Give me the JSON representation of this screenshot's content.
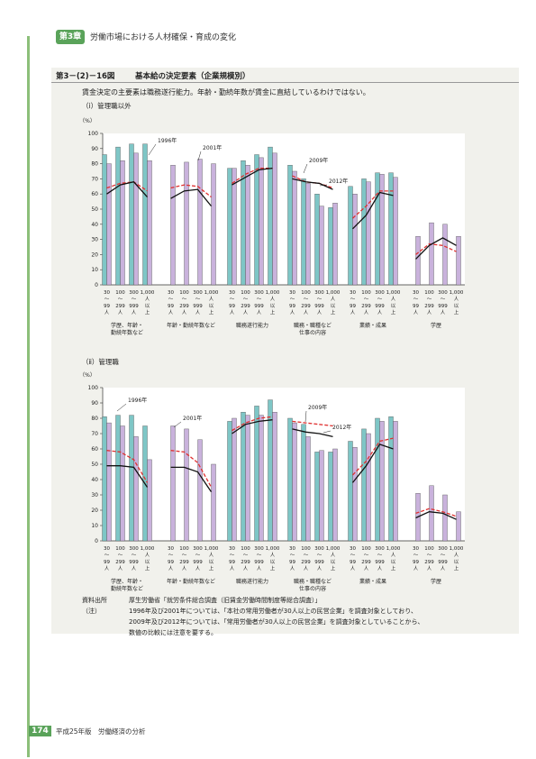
{
  "header": {
    "chapter_badge": "第3章",
    "chapter_title": "労働市場における人材確保・育成の変化"
  },
  "figure": {
    "id": "第3－(2)－16図",
    "title": "基本給の決定要素（企業規模別）",
    "lead": "賃金決定の主要素は職務遂行能力。年齢・勤続年数が賃金に直結しているわけではない。"
  },
  "chart_data": [
    {
      "type": "bar",
      "panel_label": "（ⅰ）管理職以外",
      "ylabel": "（%）",
      "ylim": [
        0,
        100
      ],
      "yticks": [
        0,
        10,
        20,
        30,
        40,
        50,
        60,
        70,
        80,
        90,
        100
      ],
      "size_labels": [
        [
          "30",
          "〜",
          "99",
          "人"
        ],
        [
          "100",
          "〜",
          "299",
          "人"
        ],
        [
          "300",
          "〜",
          "999",
          "人"
        ],
        [
          "1,000",
          "人",
          "以",
          "上"
        ]
      ],
      "groups": [
        "学歴、年齢・勤続年数など",
        "年齢・勤続年数など",
        "職務遂行能力",
        "職務・職種など仕事の内容",
        "業績・成果",
        "学歴"
      ],
      "series": [
        {
          "name": "1996年",
          "kind": "bar",
          "color": "#7ec6c6",
          "values": [
            [
              86,
              91,
              93,
              93
            ],
            [
              null,
              null,
              null,
              null
            ],
            [
              77,
              82,
              86,
              91
            ],
            [
              79,
              70,
              60,
              51
            ],
            [
              65,
              70,
              74,
              74
            ],
            [
              null,
              null,
              null,
              null
            ]
          ]
        },
        {
          "name": "2001年",
          "kind": "bar",
          "color": "#c9b2dc",
          "values": [
            [
              80,
              82,
              87,
              82
            ],
            [
              79,
              81,
              83,
              80
            ],
            [
              77,
              79,
              84,
              87
            ],
            [
              75,
              67,
              52,
              54
            ],
            [
              60,
              68,
              73,
              71
            ],
            [
              32,
              41,
              40,
              32
            ]
          ]
        },
        {
          "name": "2009年",
          "kind": "line",
          "color": "#e03030",
          "dash": true,
          "values": [
            [
              64,
              67,
              68,
              62
            ],
            [
              64,
              66,
              65,
              58
            ],
            [
              67,
              73,
              77,
              77
            ],
            [
              72,
              68,
              67,
              64
            ],
            [
              44,
              52,
              62,
              62
            ],
            [
              20,
              27,
              26,
              22
            ]
          ]
        },
        {
          "name": "2012年",
          "kind": "line",
          "color": "#111111",
          "dash": false,
          "values": [
            [
              60,
              66,
              68,
              58
            ],
            [
              57,
              62,
              63,
              52
            ],
            [
              66,
              71,
              76,
              77
            ],
            [
              70,
              68,
              67,
              63
            ],
            [
              37,
              46,
              61,
              59
            ],
            [
              17,
              26,
              31,
              26
            ]
          ]
        }
      ]
    },
    {
      "type": "bar",
      "panel_label": "（ⅱ）管理職",
      "ylabel": "（%）",
      "ylim": [
        0,
        100
      ],
      "yticks": [
        0,
        10,
        20,
        30,
        40,
        50,
        60,
        70,
        80,
        90,
        100
      ],
      "size_labels": [
        [
          "30",
          "〜",
          "99",
          "人"
        ],
        [
          "100",
          "〜",
          "299",
          "人"
        ],
        [
          "300",
          "〜",
          "999",
          "人"
        ],
        [
          "1,000",
          "人",
          "以",
          "上"
        ]
      ],
      "groups": [
        "学歴、年齢・勤続年数など",
        "年齢・勤続年数など",
        "職務遂行能力",
        "職務・職種など仕事の内容",
        "業績・成果",
        "学歴"
      ],
      "series": [
        {
          "name": "1996年",
          "kind": "bar",
          "color": "#7ec6c6",
          "values": [
            [
              81,
              82,
              82,
              75
            ],
            [
              null,
              null,
              null,
              null
            ],
            [
              78,
              84,
              88,
              92
            ],
            [
              80,
              76,
              58,
              58
            ],
            [
              65,
              73,
              80,
              81
            ],
            [
              null,
              null,
              null,
              null
            ]
          ]
        },
        {
          "name": "2001年",
          "kind": "bar",
          "color": "#c9b2dc",
          "values": [
            [
              77,
              75,
              68,
              53
            ],
            [
              75,
              73,
              66,
              50
            ],
            [
              80,
              82,
              82,
              84
            ],
            [
              77,
              68,
              59,
              60
            ],
            [
              61,
              70,
              78,
              78
            ],
            [
              31,
              36,
              30,
              19
            ]
          ]
        },
        {
          "name": "2009年",
          "kind": "line",
          "color": "#e03030",
          "dash": true,
          "values": [
            [
              59,
              58,
              53,
              38
            ],
            [
              59,
              58,
              51,
              35
            ],
            [
              72,
              77,
              80,
              81
            ],
            [
              78,
              77,
              76,
              75
            ],
            [
              43,
              52,
              65,
              67
            ],
            [
              18,
              21,
              19,
              16
            ]
          ]
        },
        {
          "name": "2012年",
          "kind": "line",
          "color": "#111111",
          "dash": false,
          "values": [
            [
              49,
              49,
              48,
              35
            ],
            [
              48,
              48,
              45,
              32
            ],
            [
              70,
              76,
              78,
              79
            ],
            [
              73,
              71,
              70,
              68
            ],
            [
              38,
              49,
              63,
              60
            ],
            [
              15,
              19,
              18,
              14
            ]
          ]
        }
      ]
    }
  ],
  "notes": {
    "source_label": "資料出所",
    "source_text": "厚生労働省「就労条件総合調査（旧賃金労働時間制度等総合調査）」",
    "note_label": "（注）",
    "note_lines": [
      "1996年及び2001年については、「本社の常用労働者が30人以上の民営企業」を調査対象としており、",
      "2009年及び2012年については、「常用労働者が30人以上の民営企業」を調査対象としていることから、",
      "数値の比較には注意を要する。"
    ]
  },
  "footer": {
    "page_number": "174",
    "book_title": "平成25年版　労働経済の分析"
  }
}
